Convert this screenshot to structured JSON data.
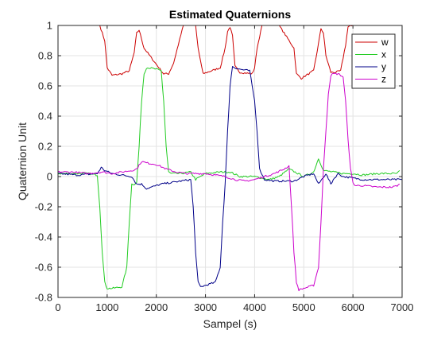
{
  "chart_data": {
    "type": "line",
    "title": "Estimated Quaternions",
    "xlabel": "Sampel (s)",
    "ylabel": "Quaternion Unit",
    "xlim": [
      0,
      7000
    ],
    "ylim": [
      -0.8,
      1
    ],
    "xticks": [
      0,
      1000,
      2000,
      3000,
      4000,
      5000,
      6000,
      7000
    ],
    "yticks": [
      -0.8,
      -0.6,
      -0.4,
      -0.2,
      0,
      0.2,
      0.4,
      0.6,
      0.8,
      1
    ],
    "xtick_labels": [
      "0",
      "1000",
      "2000",
      "3000",
      "4000",
      "5000",
      "6000",
      "7000"
    ],
    "ytick_labels": [
      "-0.8",
      "-0.6",
      "-0.4",
      "-0.2",
      "0",
      "0.2",
      "0.4",
      "0.6",
      "0.8",
      "1"
    ],
    "grid": true,
    "legend_position": "top-right",
    "series": [
      {
        "name": "w",
        "color": "#cc0000",
        "x": [
          0,
          850,
          950,
          1000,
          1100,
          1300,
          1450,
          1550,
          1600,
          1650,
          1750,
          2100,
          2150,
          2250,
          2350,
          2550,
          2800,
          2850,
          2950,
          3300,
          3400,
          3450,
          3500,
          3550,
          3600,
          3700,
          3950,
          4000,
          4050,
          4150,
          4300,
          4500,
          4800,
          4850,
          4950,
          5200,
          5300,
          5350,
          5400,
          5450,
          5550,
          5650,
          5750,
          5850,
          5900,
          6000,
          7000
        ],
        "y": [
          1,
          1,
          0.9,
          0.72,
          0.67,
          0.68,
          0.7,
          0.82,
          0.95,
          0.97,
          0.85,
          0.7,
          0.68,
          0.68,
          0.75,
          1,
          1,
          0.85,
          0.68,
          0.72,
          0.85,
          0.96,
          0.99,
          0.93,
          0.73,
          0.69,
          0.68,
          0.72,
          0.85,
          1,
          1,
          1,
          0.85,
          0.68,
          0.65,
          0.7,
          0.88,
          0.98,
          0.95,
          0.8,
          0.69,
          0.69,
          0.7,
          0.87,
          0.99,
          1,
          1
        ]
      },
      {
        "name": "x",
        "color": "#22cc22",
        "x": [
          0,
          300,
          600,
          800,
          850,
          900,
          950,
          1000,
          1100,
          1300,
          1400,
          1450,
          1500,
          1550,
          1600,
          1650,
          1700,
          1750,
          1800,
          1850,
          2000,
          2100,
          2150,
          2200,
          2250,
          2300,
          2500,
          2700,
          2800,
          3000,
          3300,
          3500,
          3700,
          4000,
          4300,
          4500,
          4700,
          5000,
          5200,
          5300,
          5350,
          5400,
          5600,
          5800,
          5900,
          6000,
          6200,
          6500,
          6800,
          6900,
          6950
        ],
        "y": [
          0.02,
          0.02,
          0.02,
          0.01,
          -0.2,
          -0.5,
          -0.7,
          -0.74,
          -0.74,
          -0.73,
          -0.6,
          -0.3,
          -0.05,
          -0.05,
          -0.04,
          0.2,
          0.5,
          0.68,
          0.72,
          0.72,
          0.71,
          0.7,
          0.5,
          0.2,
          0.03,
          0.02,
          0.02,
          0.03,
          -0.02,
          0.02,
          0.03,
          0.03,
          0,
          0,
          -0.02,
          0,
          0.05,
          0,
          0.03,
          0.12,
          0.08,
          0.04,
          0.03,
          0.02,
          0.02,
          0.02,
          0.01,
          0.02,
          0.02,
          0.02,
          0.04
        ]
      },
      {
        "name": "y",
        "color": "#000088",
        "x": [
          0,
          400,
          800,
          880,
          950,
          1100,
          1300,
          1500,
          1600,
          1700,
          1800,
          2100,
          2300,
          2500,
          2700,
          2750,
          2800,
          2850,
          2900,
          3000,
          3200,
          3300,
          3350,
          3400,
          3450,
          3500,
          3550,
          3600,
          3700,
          3900,
          4000,
          4050,
          4100,
          4200,
          4400,
          4600,
          4800,
          5000,
          5200,
          5300,
          5450,
          5550,
          5600,
          5700,
          5800,
          6000,
          6200,
          6500,
          7000
        ],
        "y": [
          0.02,
          0.01,
          0.02,
          0.06,
          0.04,
          0.02,
          0.01,
          0,
          -0.05,
          -0.05,
          -0.08,
          -0.05,
          -0.04,
          -0.03,
          -0.02,
          -0.2,
          -0.5,
          -0.7,
          -0.73,
          -0.72,
          -0.7,
          -0.6,
          -0.3,
          -0.05,
          0.3,
          0.6,
          0.73,
          0.72,
          0.71,
          0.7,
          0.5,
          0.3,
          0.05,
          -0.02,
          -0.03,
          -0.03,
          -0.03,
          0,
          0.02,
          -0.05,
          0.02,
          -0.05,
          -0.02,
          0.02,
          0,
          -0.01,
          -0.02,
          -0.02,
          -0.02
        ]
      },
      {
        "name": "z",
        "color": "#cc00cc",
        "x": [
          0,
          300,
          600,
          900,
          1100,
          1300,
          1500,
          1600,
          1700,
          1800,
          2000,
          2200,
          2400,
          2600,
          2800,
          3000,
          3200,
          3400,
          3600,
          3800,
          4000,
          4200,
          4400,
          4600,
          4700,
          4750,
          4800,
          4850,
          4900,
          5000,
          5200,
          5300,
          5350,
          5400,
          5450,
          5500,
          5550,
          5600,
          5700,
          5800,
          5850,
          5900,
          5950,
          6000,
          6050,
          6200,
          6500,
          6800,
          6900,
          6950
        ],
        "y": [
          0.03,
          0.03,
          0.02,
          0.03,
          0.02,
          0.03,
          0.04,
          0.05,
          0.1,
          0.09,
          0.08,
          0.05,
          0.03,
          0.02,
          0.02,
          0.02,
          0.01,
          0,
          -0.02,
          -0.03,
          -0.02,
          0,
          0.02,
          0.05,
          0.07,
          -0.2,
          -0.5,
          -0.7,
          -0.75,
          -0.74,
          -0.72,
          -0.6,
          -0.3,
          0.05,
          0.3,
          0.55,
          0.67,
          0.68,
          0.68,
          0.66,
          0.5,
          0.25,
          0.05,
          -0.04,
          -0.06,
          -0.06,
          -0.07,
          -0.07,
          -0.06,
          -0.05
        ]
      }
    ]
  }
}
